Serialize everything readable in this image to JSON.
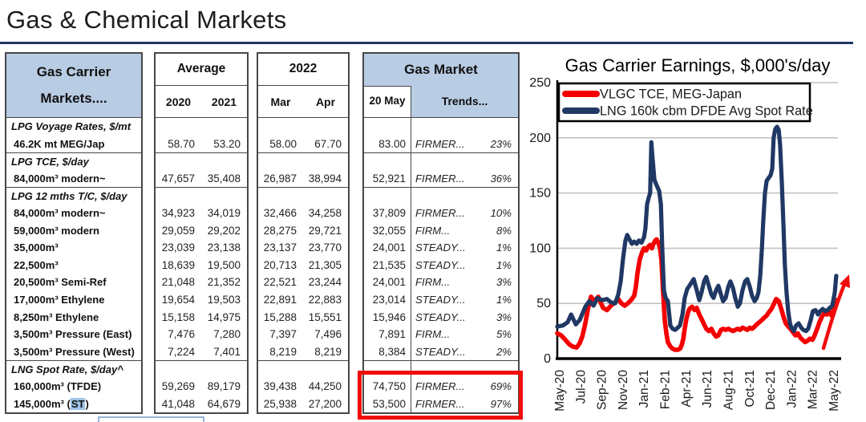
{
  "page": {
    "title": "Gas & Chemical Markets"
  },
  "colors": {
    "header_blue": "#b8cce4",
    "rule_navy": "#1f3864",
    "vlgc_red": "#f40000",
    "lng_navy": "#203864",
    "highlight_box_red": "#f20d0d",
    "st_highlight_blue": "#9dc3e6",
    "grid_gray": "#c3c3c3"
  },
  "table": {
    "col1_header_line1": "Gas Carrier",
    "col1_header_line2": "Markets....",
    "avg_header": "Average",
    "avg_sub": [
      "2020",
      "2021"
    ],
    "y2022_header": "2022",
    "y2022_sub": [
      "Mar",
      "Apr"
    ],
    "gas_header": "Gas Market",
    "gas_sub_left": "20 May",
    "gas_sub_right": "Trends...",
    "rows": [
      {
        "type": "group",
        "label": "LPG Voyage Rates, $/mt"
      },
      {
        "type": "item",
        "label": "46.2K mt MEG/Jap",
        "v": [
          "58.70",
          "53.20",
          "58.00",
          "67.70",
          "83.00"
        ],
        "trend": "FIRMER...",
        "pct": "23%"
      },
      {
        "type": "group",
        "label": "LPG TCE, $/day"
      },
      {
        "type": "item",
        "label": "84,000m³ modern~",
        "v": [
          "47,657",
          "35,408",
          "26,987",
          "38,994",
          "52,921"
        ],
        "trend": "FIRMER...",
        "pct": "36%"
      },
      {
        "type": "group",
        "label": "LPG 12 mths T/C, $/day"
      },
      {
        "type": "item",
        "label": "84,000m³ modern~",
        "v": [
          "34,923",
          "34,019",
          "32,466",
          "34,258",
          "37,809"
        ],
        "trend": "FIRMER...",
        "pct": "10%"
      },
      {
        "type": "item",
        "label": "59,000m³ modern",
        "v": [
          "29,059",
          "29,202",
          "28,275",
          "29,721",
          "32,055"
        ],
        "trend": "FIRM...",
        "pct": "8%"
      },
      {
        "type": "item",
        "label": "35,000m³",
        "v": [
          "23,039",
          "23,138",
          "23,137",
          "23,770",
          "24,001"
        ],
        "trend": "STEADY...",
        "pct": "1%"
      },
      {
        "type": "item",
        "label": "22,500m³",
        "v": [
          "18,639",
          "19,500",
          "20,713",
          "21,305",
          "21,535"
        ],
        "trend": "STEADY...",
        "pct": "1%"
      },
      {
        "type": "item",
        "label": "20,500m³ Semi-Ref",
        "v": [
          "21,048",
          "21,352",
          "22,521",
          "23,244",
          "24,001"
        ],
        "trend": "FIRM...",
        "pct": "3%"
      },
      {
        "type": "item",
        "label": "17,000m³ Ethylene",
        "v": [
          "19,654",
          "19,503",
          "22,891",
          "22,883",
          "23,014"
        ],
        "trend": "STEADY...",
        "pct": "1%"
      },
      {
        "type": "item",
        "label": "8,250m³ Ethylene",
        "v": [
          "15,158",
          "14,975",
          "15,288",
          "15,551",
          "15,946"
        ],
        "trend": "STEADY...",
        "pct": "3%"
      },
      {
        "type": "item",
        "label": "3,500m³ Pressure (East)",
        "v": [
          "7,476",
          "7,280",
          "7,397",
          "7,496",
          "7,891"
        ],
        "trend": "FIRM...",
        "pct": "5%"
      },
      {
        "type": "item",
        "label": "3,500m³ Pressure (West)",
        "v": [
          "7,224",
          "7,401",
          "8,219",
          "8,219",
          "8,384"
        ],
        "trend": "STEADY...",
        "pct": "2%"
      },
      {
        "type": "group",
        "label": "LNG Spot Rate, $/day^"
      },
      {
        "type": "item",
        "label": "160,000m³ (TFDE)",
        "v": [
          "59,269",
          "89,179",
          "39,438",
          "44,250",
          "74,750"
        ],
        "trend": "FIRMER...",
        "pct": "69%"
      },
      {
        "type": "item",
        "label": "145,000m³ (ST)",
        "parts": {
          "pre": "145,000m³ (",
          "hl": "ST",
          "post": ")"
        },
        "v": [
          "41,048",
          "64,679",
          "25,938",
          "27,200",
          "53,500"
        ],
        "trend": "FIRMER...",
        "pct": "97%"
      }
    ]
  },
  "chart_data": {
    "type": "line",
    "title": "Gas Carrier Earnings, $,000's/day",
    "ylim": [
      0,
      250
    ],
    "yticks": [
      0,
      50,
      100,
      150,
      200,
      250
    ],
    "grid": true,
    "legend_position": "top-left",
    "xticklabels": [
      "May-20",
      "Jul-20",
      "Sep-20",
      "Nov-20",
      "Jan-21",
      "Feb-21",
      "Apr-21",
      "Jun-21",
      "Aug-21",
      "Oct-21",
      "Dec-21",
      "Jan-22",
      "Mar-22",
      "May-22"
    ],
    "legend": [
      {
        "name": "VLGC TCE, MEG-Japan",
        "color": "#f40000"
      },
      {
        "name": "LNG 160k cbm DFDE Avg Spot Rate",
        "color": "#203864"
      }
    ],
    "annotation": {
      "type": "arrow",
      "color": "#f20d0d",
      "direction": "up-right"
    },
    "series": [
      {
        "name": "VLGC TCE, MEG-Japan",
        "color": "#f40000",
        "points": [
          [
            0,
            23
          ],
          [
            1.4,
            21
          ],
          [
            2.9,
            17
          ],
          [
            4.3,
            13
          ],
          [
            5.4,
            11
          ],
          [
            6.9,
            10
          ],
          [
            8,
            14
          ],
          [
            8.9,
            20
          ],
          [
            10,
            32
          ],
          [
            10.9,
            45
          ],
          [
            12,
            56
          ],
          [
            13.1,
            52
          ],
          [
            14.6,
            56
          ],
          [
            16.3,
            46
          ],
          [
            17.7,
            44
          ],
          [
            19.1,
            48
          ],
          [
            20.6,
            51
          ],
          [
            21.7,
            54
          ],
          [
            22.9,
            50
          ],
          [
            24,
            48
          ],
          [
            25.1,
            50
          ],
          [
            26.3,
            53
          ],
          [
            27.4,
            57
          ],
          [
            28,
            65
          ],
          [
            28.6,
            78
          ],
          [
            29.4,
            90
          ],
          [
            30.3,
            97
          ],
          [
            30.9,
            100
          ],
          [
            31.7,
            98
          ],
          [
            32.3,
            101
          ],
          [
            33.1,
            103
          ],
          [
            33.7,
            100
          ],
          [
            34.3,
            104
          ],
          [
            34.9,
            107
          ],
          [
            35.4,
            108
          ],
          [
            36,
            105
          ],
          [
            36.6,
            100
          ],
          [
            37.1,
            90
          ],
          [
            37.7,
            60
          ],
          [
            38.3,
            35
          ],
          [
            38.9,
            22
          ],
          [
            39.4,
            15
          ],
          [
            40.3,
            11
          ],
          [
            41.1,
            9
          ],
          [
            42,
            8
          ],
          [
            42.9,
            8
          ],
          [
            43.7,
            9
          ],
          [
            44.3,
            12
          ],
          [
            44.9,
            18
          ],
          [
            45.4,
            27
          ],
          [
            46,
            36
          ],
          [
            46.6,
            42
          ],
          [
            47.1,
            45
          ],
          [
            48,
            47
          ],
          [
            48.9,
            44
          ],
          [
            49.7,
            46
          ],
          [
            50.6,
            40
          ],
          [
            51.4,
            36
          ],
          [
            52.3,
            31
          ],
          [
            53.1,
            27
          ],
          [
            54,
            25
          ],
          [
            54.9,
            27
          ],
          [
            55.7,
            23
          ],
          [
            56.6,
            20
          ],
          [
            57.4,
            21
          ],
          [
            58.3,
            26
          ],
          [
            59.1,
            27
          ],
          [
            60,
            26
          ],
          [
            60.9,
            27
          ],
          [
            61.7,
            26
          ],
          [
            62.6,
            25
          ],
          [
            63.4,
            26
          ],
          [
            64.3,
            27
          ],
          [
            65.1,
            26
          ],
          [
            66,
            28
          ],
          [
            66.9,
            27
          ],
          [
            67.7,
            26
          ],
          [
            68.6,
            28
          ],
          [
            69.4,
            27
          ],
          [
            70.3,
            29
          ],
          [
            71.1,
            31
          ],
          [
            72,
            33
          ],
          [
            72.9,
            35
          ],
          [
            73.7,
            37
          ],
          [
            74.6,
            39
          ],
          [
            75.4,
            42
          ],
          [
            76.3,
            45
          ],
          [
            77.1,
            49
          ],
          [
            78,
            54
          ],
          [
            78.9,
            52
          ],
          [
            79.7,
            46
          ],
          [
            80.6,
            38
          ],
          [
            81.4,
            32
          ],
          [
            82.3,
            29
          ],
          [
            83.1,
            27
          ],
          [
            84,
            24
          ],
          [
            84.9,
            21
          ],
          [
            85.7,
            23
          ],
          [
            86.6,
            19
          ],
          [
            87.4,
            17
          ],
          [
            88.3,
            15
          ],
          [
            89.1,
            16
          ],
          [
            90,
            18
          ],
          [
            90.9,
            17
          ],
          [
            91.7,
            21
          ],
          [
            92.6,
            27
          ],
          [
            93.4,
            33
          ],
          [
            94.3,
            38
          ],
          [
            95.1,
            41
          ],
          [
            96,
            40
          ],
          [
            96.9,
            42
          ],
          [
            97.7,
            39
          ],
          [
            98.6,
            46
          ],
          [
            99.4,
            53
          ]
        ]
      },
      {
        "name": "LNG 160k cbm DFDE Avg Spot Rate",
        "color": "#203864",
        "points": [
          [
            0,
            29
          ],
          [
            2,
            30
          ],
          [
            3.7,
            33
          ],
          [
            4.9,
            40
          ],
          [
            6.6,
            31
          ],
          [
            8,
            35
          ],
          [
            10,
            47
          ],
          [
            11.4,
            52
          ],
          [
            12.9,
            48
          ],
          [
            14.3,
            55
          ],
          [
            16,
            53
          ],
          [
            17.7,
            54
          ],
          [
            19.1,
            51
          ],
          [
            20.6,
            50
          ],
          [
            21.7,
            58
          ],
          [
            22.6,
            70
          ],
          [
            23.4,
            90
          ],
          [
            24.3,
            107
          ],
          [
            24.9,
            112
          ],
          [
            25.7,
            108
          ],
          [
            26.6,
            104
          ],
          [
            27.4,
            106
          ],
          [
            28.3,
            104
          ],
          [
            29.1,
            107
          ],
          [
            30,
            105
          ],
          [
            30.9,
            110
          ],
          [
            31.4,
            118
          ],
          [
            32,
            140
          ],
          [
            32.6,
            146
          ],
          [
            33.1,
            150
          ],
          [
            33.5,
            196
          ],
          [
            34,
            180
          ],
          [
            34.6,
            162
          ],
          [
            35.4,
            157
          ],
          [
            36.3,
            152
          ],
          [
            36.9,
            140
          ],
          [
            37.4,
            100
          ],
          [
            38,
            62
          ],
          [
            38.6,
            55
          ],
          [
            39.4,
            52
          ],
          [
            40.3,
            30
          ],
          [
            41.1,
            27
          ],
          [
            42,
            26
          ],
          [
            42.9,
            28
          ],
          [
            43.7,
            30
          ],
          [
            44.6,
            40
          ],
          [
            45.4,
            55
          ],
          [
            46.3,
            63
          ],
          [
            47.1,
            66
          ],
          [
            48.6,
            72
          ],
          [
            49.7,
            62
          ],
          [
            50.6,
            53
          ],
          [
            51.4,
            60
          ],
          [
            52.3,
            70
          ],
          [
            53.1,
            74
          ],
          [
            54,
            66
          ],
          [
            54.9,
            58
          ],
          [
            55.7,
            55
          ],
          [
            56.6,
            62
          ],
          [
            57.4,
            66
          ],
          [
            58.3,
            58
          ],
          [
            59.1,
            52
          ],
          [
            60,
            55
          ],
          [
            60.9,
            65
          ],
          [
            61.7,
            70
          ],
          [
            62.6,
            64
          ],
          [
            63.4,
            55
          ],
          [
            64.3,
            47
          ],
          [
            65.1,
            50
          ],
          [
            66,
            62
          ],
          [
            66.9,
            70
          ],
          [
            67.7,
            72
          ],
          [
            68.6,
            65
          ],
          [
            69.4,
            57
          ],
          [
            70.3,
            52
          ],
          [
            71.1,
            55
          ],
          [
            71.7,
            60
          ],
          [
            72.3,
            75
          ],
          [
            72.9,
            100
          ],
          [
            73.4,
            125
          ],
          [
            74,
            150
          ],
          [
            74.6,
            161
          ],
          [
            75.4,
            164
          ],
          [
            76,
            166
          ],
          [
            76.6,
            172
          ],
          [
            77.1,
            200
          ],
          [
            77.7,
            208
          ],
          [
            78.3,
            210
          ],
          [
            78.9,
            207
          ],
          [
            79.4,
            193
          ],
          [
            80,
            160
          ],
          [
            80.6,
            120
          ],
          [
            81.1,
            85
          ],
          [
            81.7,
            60
          ],
          [
            82.3,
            42
          ],
          [
            82.9,
            32
          ],
          [
            83.4,
            28
          ],
          [
            84.3,
            25
          ],
          [
            85.1,
            30
          ],
          [
            86,
            32
          ],
          [
            86.9,
            28
          ],
          [
            87.7,
            26
          ],
          [
            88.6,
            25
          ],
          [
            89.4,
            27
          ],
          [
            90.3,
            35
          ],
          [
            91.1,
            43
          ],
          [
            92,
            44
          ],
          [
            92.9,
            40
          ],
          [
            93.7,
            43
          ],
          [
            94.6,
            45
          ],
          [
            95.4,
            43
          ],
          [
            96.3,
            44
          ],
          [
            97.1,
            46
          ],
          [
            98,
            48
          ],
          [
            98.9,
            60
          ],
          [
            99.4,
            75
          ]
        ]
      }
    ]
  }
}
